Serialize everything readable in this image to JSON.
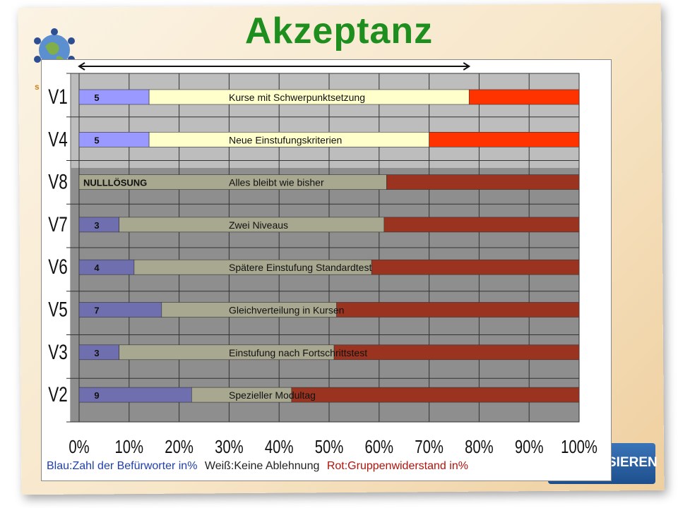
{
  "title": "Akzeptanz",
  "logo_letter": "s",
  "corner_badge": "SIEREN",
  "legend": {
    "blue": "Blau:Zahl der Befürworter in%",
    "white": "Weiß:Keine Ablehnung",
    "red": "Rot:Gruppenwiderstand in%"
  },
  "colors": {
    "blue": "#9999ff",
    "white": "#ffffcc",
    "red": "#ff3300",
    "blue_dim": "#6f6fb0",
    "white_dim": "#a8a890",
    "red_dim": "#9a3420",
    "title": "#1e8f1e",
    "legend_blue": "#1f3fae",
    "legend_red": "#b3130b"
  },
  "chart_data": {
    "type": "bar",
    "orientation": "horizontal-stacked",
    "categories": [
      "V1",
      "V4",
      "V8",
      "V7",
      "V6",
      "V5",
      "V3",
      "V2"
    ],
    "descriptions": [
      "Kurse mit Schwerpunktsetzung",
      "Neue Einstufungskriterien",
      "Alles bleibt wie bisher",
      "Zwei Niveaus",
      "Spätere Einstufung Standardtest",
      "Gleichverteilung in Kursen",
      "Einstufung nach Fortschrittstest",
      "Spezieller Modultag"
    ],
    "blue_labels": [
      "5",
      "5",
      "NULLLÖSUNG",
      "3",
      "4",
      "7",
      "3",
      "9"
    ],
    "series": [
      {
        "name": "Blau",
        "values": [
          14,
          14,
          0,
          8,
          11,
          16.5,
          8,
          22.5
        ]
      },
      {
        "name": "Weiß",
        "values": [
          64,
          56,
          61.5,
          53,
          47.5,
          35,
          43,
          20
        ]
      },
      {
        "name": "Rot",
        "values": [
          22,
          30,
          38.5,
          39,
          41.5,
          48.5,
          49,
          57.5
        ]
      }
    ],
    "highlight_rows": [
      0,
      1
    ],
    "bracket_range": [
      0,
      78
    ],
    "xlim": [
      0,
      100
    ],
    "x_ticks": [
      "0%",
      "10%",
      "20%",
      "30%",
      "40%",
      "50%",
      "60%",
      "70%",
      "80%",
      "90%",
      "100%"
    ],
    "grid": true
  }
}
